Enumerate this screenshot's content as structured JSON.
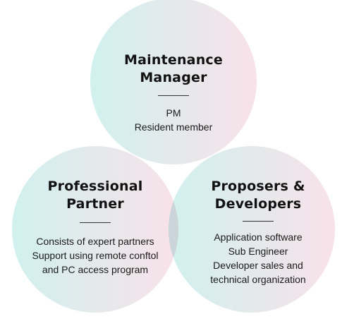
{
  "colors": {
    "teal": "#c9eeec",
    "pink": "#f7dde5",
    "divider": "#333333",
    "text": "#111111"
  },
  "circles": {
    "top": {
      "title_lines": [
        "Maintenance",
        "Manager"
      ],
      "body_lines": [
        "PM",
        "Resident member"
      ]
    },
    "left": {
      "title_lines": [
        "Professional",
        "Partner"
      ],
      "body_lines": [
        "Consists of expert partners",
        "Support using remote conftol",
        "and PC access program"
      ]
    },
    "right": {
      "title_lines": [
        "Proposers &",
        "Developers"
      ],
      "body_lines": [
        "Application software",
        "Sub Engineer",
        "Developer sales and",
        "technical organization"
      ]
    }
  }
}
